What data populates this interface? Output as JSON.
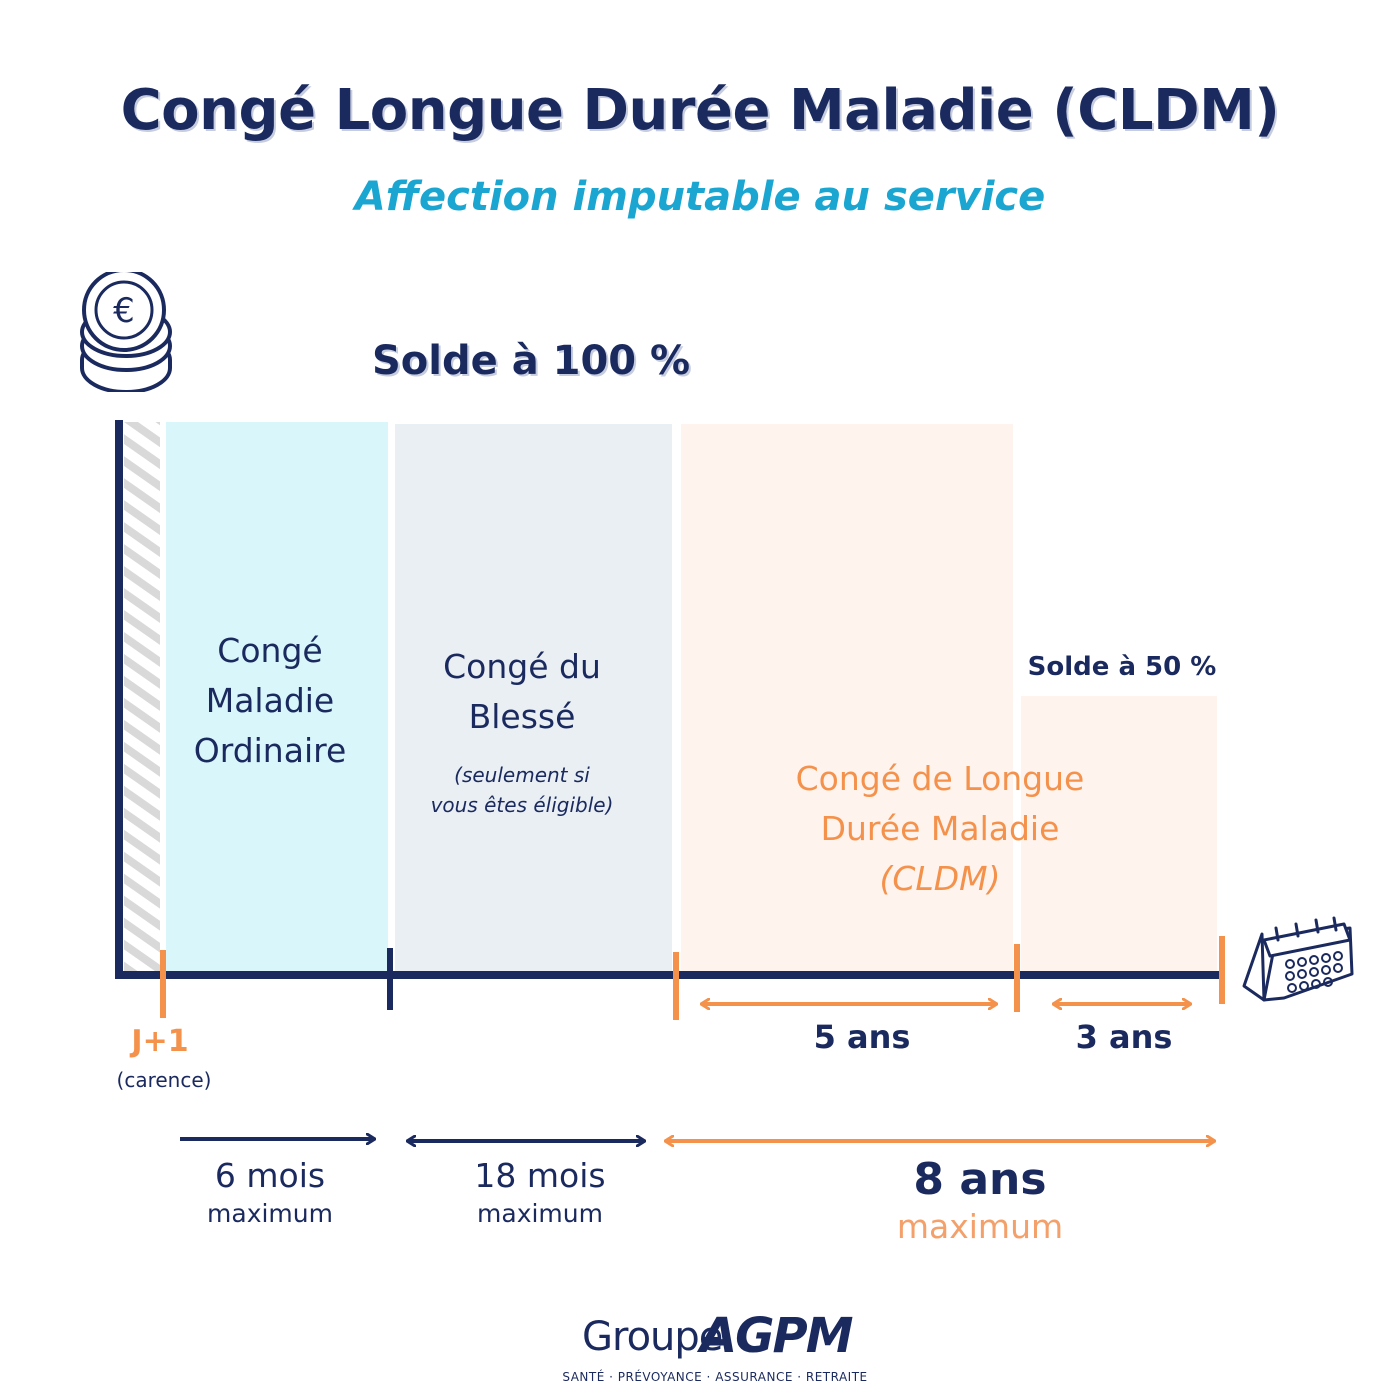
{
  "title": "Congé Longue Durée Maladie (CLDM)",
  "subtitle": "Affection imputable au service",
  "solde_full": "Solde à 100 %",
  "solde_half": "Solde à 50 %",
  "blocks": {
    "cmo": {
      "label_lines": [
        "Congé",
        "Maladie",
        "Ordinaire"
      ],
      "color": "#d9f6fb"
    },
    "blesse": {
      "label_lines": [
        "Congé du",
        "Blessé"
      ],
      "note_lines": [
        "(seulement si",
        "vous êtes éligible)"
      ],
      "color": "#e9eff3"
    },
    "cldm": {
      "label_lines": [
        "Congé de Longue",
        "Durée Maladie",
        "(CLDM)"
      ],
      "color": "#fff3ee"
    },
    "cldm_half": {
      "color": "#fff3ee"
    }
  },
  "timeline": {
    "j1": "J+1",
    "carence": "(carence)",
    "cldm_full_duration": "5 ans",
    "cldm_half_duration": "3 ans"
  },
  "durations": {
    "cmo": {
      "value": "6 mois",
      "note": "maximum"
    },
    "blesse": {
      "value": "18 mois",
      "note": "maximum"
    },
    "cldm": {
      "value": "8 ans",
      "note": "maximum"
    }
  },
  "logo": {
    "groupe": "Groupe",
    "brand": "AGPM",
    "tagline": "SANTÉ · PRÉVOYANCE · ASSURANCE · RETRAITE"
  },
  "colors": {
    "navy": "#1b2a5e",
    "cyan": "#1aa6d1",
    "orange": "#f4924c"
  },
  "icons": [
    "euro-coins-icon",
    "calendar-icon"
  ]
}
